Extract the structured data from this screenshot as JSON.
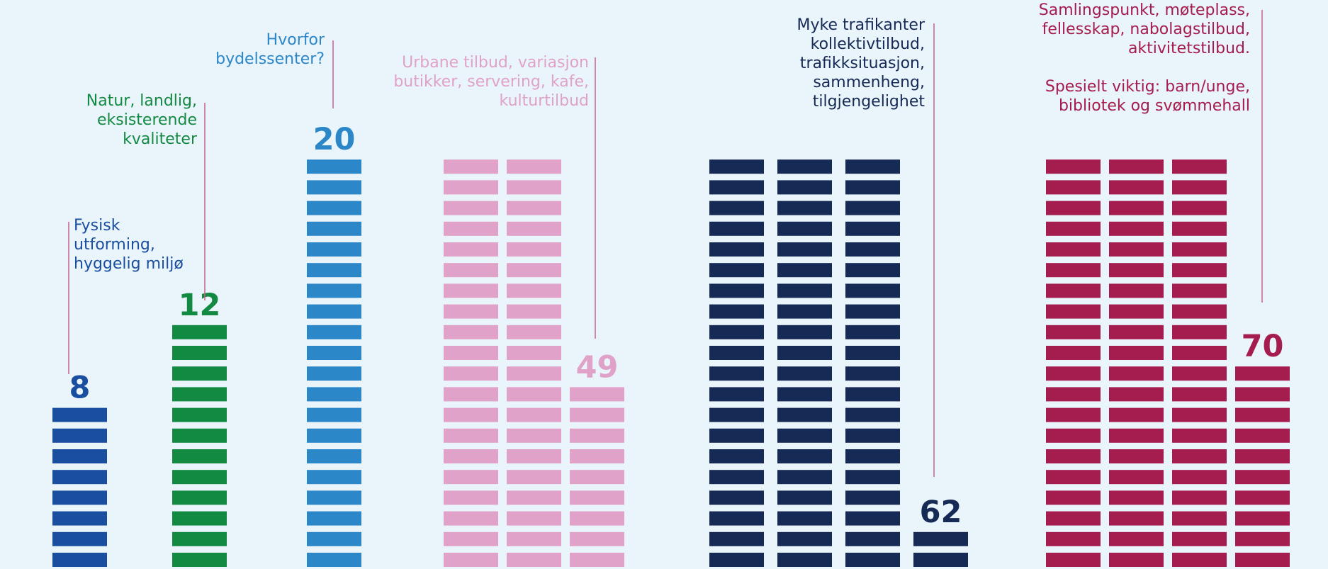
{
  "chart_data": {
    "type": "pictogram",
    "values": [
      8,
      12,
      20,
      49,
      62,
      70
    ],
    "colors": [
      "#1a4fa0",
      "#138a42",
      "#2b87c8",
      "#e0a2c8",
      "#152a55",
      "#a51c4e"
    ],
    "per_column": 20,
    "labels": [
      [
        [
          "Fysisk",
          "utforming,",
          "hyggelig miljø"
        ]
      ],
      [
        [
          "Natur, landlig,",
          "eksisterende",
          "kvaliteter"
        ]
      ],
      [
        [
          "Hvorfor",
          "bydelssenter?"
        ]
      ],
      [
        [
          "Urbane tilbud, variasjon",
          "butikker, servering, kafe,",
          "kulturtilbud"
        ]
      ],
      [
        [
          "Myke trafikanter",
          "kollektivtilbud,",
          "trafikksituasjon,",
          "sammenheng,",
          "tilgjengelighet"
        ]
      ],
      [
        [
          "Samlingspunkt, møteplass,",
          "fellesskap, nabolagstilbud,",
          "aktivitetstilbud."
        ],
        [
          "Spesielt viktig: barn/unge,",
          "bibliotek og svømmehall"
        ]
      ]
    ]
  }
}
